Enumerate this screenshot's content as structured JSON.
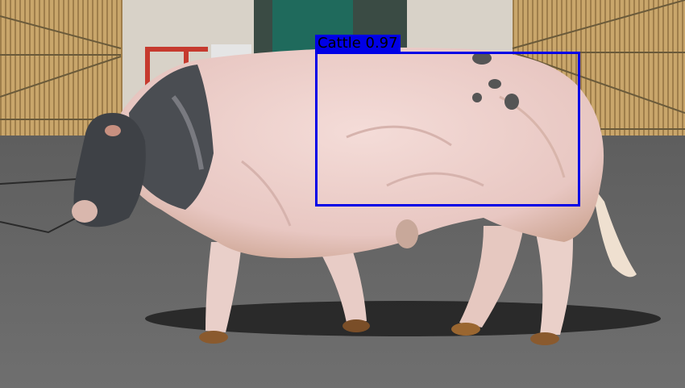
{
  "image": {
    "subject": "cattle",
    "colors": {
      "box": "#0000e6",
      "label_text": "#000000"
    }
  },
  "detections": [
    {
      "label": "Cattle 0.97"
    }
  ]
}
